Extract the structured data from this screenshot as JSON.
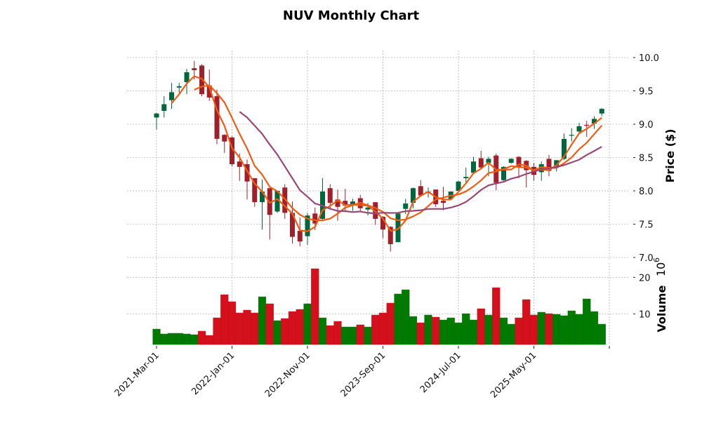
{
  "chart_data": {
    "type": "candlestick",
    "title": "NUV Monthly Chart",
    "ylabel": "Price ($)",
    "volume_label": "Volume",
    "volume_exponent": "10",
    "volume_exponent_power": "6",
    "ylim": [
      7.0,
      10.1
    ],
    "volume_ylim": [
      1.65,
      23
    ],
    "price_ticks": [
      "7.0",
      "7.5",
      "8.0",
      "8.5",
      "9.0",
      "9.5",
      "10.0"
    ],
    "volume_ticks": [
      "10",
      "20"
    ],
    "x_tick_labels": [
      "2021-Mar-01",
      "2022-Jan-01",
      "2022-Nov-01",
      "2023-Sep-01",
      "2024-Jul-01",
      "2025-May-01",
      ""
    ],
    "x_tick_every": 10,
    "grid": true,
    "moving_averages": [
      3,
      6,
      12
    ],
    "colors": {
      "up": "#00663c",
      "down": "#9f1f2a",
      "vol_up": "#007a00",
      "vol_down": "#d4101c",
      "mav": [
        "#f25c12",
        "#f25c12",
        "#9a4775"
      ]
    },
    "dates": [
      "2021-03",
      "2021-04",
      "2021-05",
      "2021-06",
      "2021-07",
      "2021-08",
      "2021-09",
      "2021-10",
      "2021-11",
      "2021-12",
      "2022-01",
      "2022-02",
      "2022-03",
      "2022-04",
      "2022-05",
      "2022-06",
      "2022-07",
      "2022-08",
      "2022-09",
      "2022-10",
      "2022-11",
      "2022-12",
      "2023-01",
      "2023-02",
      "2023-03",
      "2023-04",
      "2023-05",
      "2023-06",
      "2023-07",
      "2023-08",
      "2023-09",
      "2023-10",
      "2023-11",
      "2023-12",
      "2024-01",
      "2024-02",
      "2024-03",
      "2024-04",
      "2024-05",
      "2024-06",
      "2024-07",
      "2024-08",
      "2024-09",
      "2024-10",
      "2024-11",
      "2024-12",
      "2025-01",
      "2025-02",
      "2025-03",
      "2025-04",
      "2025-05",
      "2025-06",
      "2025-07",
      "2025-08",
      "2025-09",
      "2025-10",
      "2025-11",
      "2025-12",
      "2026-01",
      "2026-02"
    ],
    "ohlc": [
      [
        9.1,
        9.17,
        8.92,
        9.16
      ],
      [
        9.2,
        9.42,
        9.1,
        9.3
      ],
      [
        9.36,
        9.62,
        9.23,
        9.48
      ],
      [
        9.55,
        9.62,
        9.47,
        9.57
      ],
      [
        9.63,
        9.83,
        9.45,
        9.78
      ],
      [
        9.84,
        9.95,
        9.67,
        9.81
      ],
      [
        9.88,
        9.9,
        9.42,
        9.45
      ],
      [
        9.58,
        9.82,
        9.35,
        9.4
      ],
      [
        9.42,
        9.52,
        8.7,
        8.78
      ],
      [
        8.84,
        8.85,
        8.57,
        8.74
      ],
      [
        8.8,
        8.82,
        8.37,
        8.4
      ],
      [
        8.44,
        8.56,
        8.15,
        8.36
      ],
      [
        8.4,
        8.47,
        7.87,
        8.14
      ],
      [
        8.19,
        8.19,
        7.76,
        7.83
      ],
      [
        7.83,
        8.17,
        7.42,
        7.99
      ],
      [
        8.04,
        8.04,
        7.27,
        7.64
      ],
      [
        7.69,
        8.0,
        7.67,
        8.0
      ],
      [
        8.05,
        8.1,
        7.58,
        7.67
      ],
      [
        7.67,
        7.84,
        7.21,
        7.31
      ],
      [
        7.4,
        7.6,
        7.17,
        7.24
      ],
      [
        7.32,
        7.67,
        7.19,
        7.63
      ],
      [
        7.66,
        7.75,
        7.41,
        7.51
      ],
      [
        7.58,
        8.19,
        7.57,
        7.99
      ],
      [
        8.04,
        8.1,
        7.73,
        7.82
      ],
      [
        7.87,
        8.02,
        7.55,
        7.76
      ],
      [
        7.85,
        8.03,
        7.7,
        7.78
      ],
      [
        7.78,
        7.88,
        7.7,
        7.84
      ],
      [
        7.89,
        7.94,
        7.7,
        7.74
      ],
      [
        7.72,
        7.82,
        7.63,
        7.75
      ],
      [
        7.83,
        7.83,
        7.49,
        7.58
      ],
      [
        7.61,
        7.62,
        7.29,
        7.42
      ],
      [
        7.46,
        7.47,
        7.09,
        7.2
      ],
      [
        7.23,
        7.67,
        7.23,
        7.66
      ],
      [
        7.73,
        7.88,
        7.65,
        7.81
      ],
      [
        7.82,
        8.05,
        7.74,
        8.04
      ],
      [
        8.07,
        8.16,
        7.92,
        7.93
      ],
      [
        7.98,
        8.05,
        7.9,
        7.99
      ],
      [
        8.02,
        8.02,
        7.76,
        7.8
      ],
      [
        7.85,
        8.06,
        7.71,
        7.82
      ],
      [
        7.88,
        7.99,
        7.86,
        7.99
      ],
      [
        8.0,
        8.15,
        7.98,
        8.14
      ],
      [
        8.19,
        8.35,
        8.1,
        8.21
      ],
      [
        8.27,
        8.51,
        8.26,
        8.44
      ],
      [
        8.49,
        8.6,
        8.33,
        8.35
      ],
      [
        8.42,
        8.51,
        8.22,
        8.48
      ],
      [
        8.53,
        8.56,
        8.01,
        8.12
      ],
      [
        8.16,
        8.37,
        8.15,
        8.36
      ],
      [
        8.42,
        8.49,
        8.41,
        8.48
      ],
      [
        8.51,
        8.52,
        8.19,
        8.35
      ],
      [
        8.45,
        8.46,
        8.05,
        8.31
      ],
      [
        8.36,
        8.42,
        8.15,
        8.24
      ],
      [
        8.28,
        8.44,
        8.15,
        8.4
      ],
      [
        8.48,
        8.54,
        8.22,
        8.3
      ],
      [
        8.37,
        8.46,
        8.29,
        8.46
      ],
      [
        8.48,
        8.86,
        8.46,
        8.78
      ],
      [
        8.83,
        8.94,
        8.74,
        8.84
      ],
      [
        8.89,
        9.02,
        8.87,
        8.97
      ],
      [
        8.99,
        9.05,
        8.81,
        8.98
      ],
      [
        9.01,
        9.12,
        8.93,
        9.08
      ],
      [
        9.16,
        9.24,
        9.12,
        9.23
      ]
    ],
    "volume": [
      5.83,
      4.49,
      4.68,
      4.68,
      4.49,
      4.29,
      5.26,
      4.1,
      8.91,
      15.26,
      13.33,
      10.26,
      11.03,
      10.26,
      14.68,
      12.76,
      8.14,
      8.72,
      10.64,
      11.22,
      12.76,
      22.37,
      8.91,
      6.79,
      7.95,
      6.41,
      6.41,
      6.99,
      6.41,
      9.68,
      10.26,
      12.95,
      15.45,
      16.6,
      9.29,
      7.56,
      9.68,
      9.1,
      8.33,
      8.91,
      7.56,
      10.06,
      8.33,
      11.41,
      9.68,
      17.18,
      8.91,
      7.18,
      8.91,
      13.91,
      9.68,
      10.45,
      10.06,
      9.87,
      9.49,
      10.83,
      9.87,
      14.1,
      10.64,
      7.18
    ]
  }
}
